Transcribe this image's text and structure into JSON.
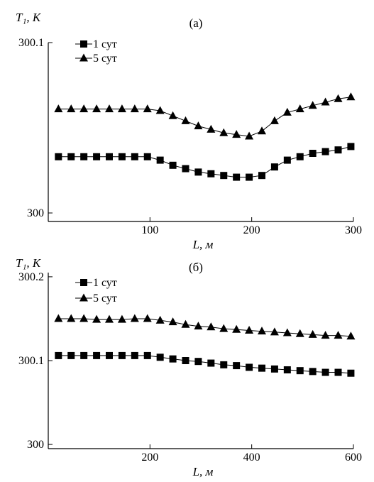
{
  "chart_data": [
    {
      "type": "line",
      "panel_label": "(a)",
      "ylabel": "T₁, K",
      "xlabel": "L, м",
      "xlim": [
        0,
        300
      ],
      "ylim": [
        299.995,
        300.1
      ],
      "x_ticks": [
        100,
        200,
        300
      ],
      "x_tick_labels": [
        "100",
        "200",
        "300"
      ],
      "y_ticks": [
        300,
        300.1
      ],
      "y_tick_labels": [
        "300",
        "300.1"
      ],
      "legend_position": "top-left",
      "series": [
        {
          "name": "1 сут",
          "marker": "square",
          "x": [
            10,
            22.5,
            35,
            47.5,
            60,
            72.5,
            85,
            97.5,
            110,
            122.5,
            135,
            147.5,
            160,
            172.5,
            185,
            197.5,
            210,
            222.5,
            235,
            247.5,
            260,
            272.5,
            285,
            297.5
          ],
          "y": [
            300.033,
            300.033,
            300.033,
            300.033,
            300.033,
            300.033,
            300.033,
            300.033,
            300.031,
            300.028,
            300.026,
            300.024,
            300.023,
            300.022,
            300.021,
            300.021,
            300.022,
            300.027,
            300.031,
            300.033,
            300.035,
            300.036,
            300.037,
            300.039
          ]
        },
        {
          "name": "5 сут",
          "marker": "triangle",
          "x": [
            10,
            22.5,
            35,
            47.5,
            60,
            72.5,
            85,
            97.5,
            110,
            122.5,
            135,
            147.5,
            160,
            172.5,
            185,
            197.5,
            210,
            222.5,
            235,
            247.5,
            260,
            272.5,
            285,
            297.5
          ],
          "y": [
            300.061,
            300.061,
            300.061,
            300.061,
            300.061,
            300.061,
            300.061,
            300.061,
            300.06,
            300.057,
            300.054,
            300.051,
            300.049,
            300.047,
            300.046,
            300.045,
            300.048,
            300.054,
            300.059,
            300.061,
            300.063,
            300.065,
            300.067,
            300.068
          ]
        }
      ]
    },
    {
      "type": "line",
      "panel_label": "(б)",
      "ylabel": "T₁, K",
      "xlabel": "L, м",
      "xlim": [
        0,
        600
      ],
      "ylim": [
        299.995,
        300.205
      ],
      "x_ticks": [
        200,
        400,
        600
      ],
      "x_tick_labels": [
        "200",
        "400",
        "600"
      ],
      "y_ticks": [
        300,
        300.1,
        300.2
      ],
      "y_tick_labels": [
        "300",
        "300.1",
        "300.2"
      ],
      "legend_position": "top-left",
      "series": [
        {
          "name": "1 сут",
          "marker": "square",
          "x": [
            20,
            45,
            70,
            95,
            120,
            145,
            170,
            195,
            220,
            245,
            270,
            295,
            320,
            345,
            370,
            395,
            420,
            445,
            470,
            495,
            520,
            545,
            570,
            595
          ],
          "y": [
            300.106,
            300.106,
            300.106,
            300.106,
            300.106,
            300.106,
            300.106,
            300.106,
            300.104,
            300.102,
            300.1,
            300.099,
            300.097,
            300.095,
            300.094,
            300.092,
            300.091,
            300.09,
            300.089,
            300.088,
            300.087,
            300.086,
            300.086,
            300.085
          ]
        },
        {
          "name": "5 сут",
          "marker": "triangle",
          "x": [
            20,
            45,
            70,
            95,
            120,
            145,
            170,
            195,
            220,
            245,
            270,
            295,
            320,
            345,
            370,
            395,
            420,
            445,
            470,
            495,
            520,
            545,
            570,
            595
          ],
          "y": [
            300.15,
            300.15,
            300.15,
            300.149,
            300.149,
            300.149,
            300.15,
            300.15,
            300.148,
            300.146,
            300.143,
            300.141,
            300.14,
            300.138,
            300.137,
            300.136,
            300.135,
            300.134,
            300.133,
            300.132,
            300.131,
            300.13,
            300.13,
            300.129
          ]
        }
      ]
    }
  ]
}
